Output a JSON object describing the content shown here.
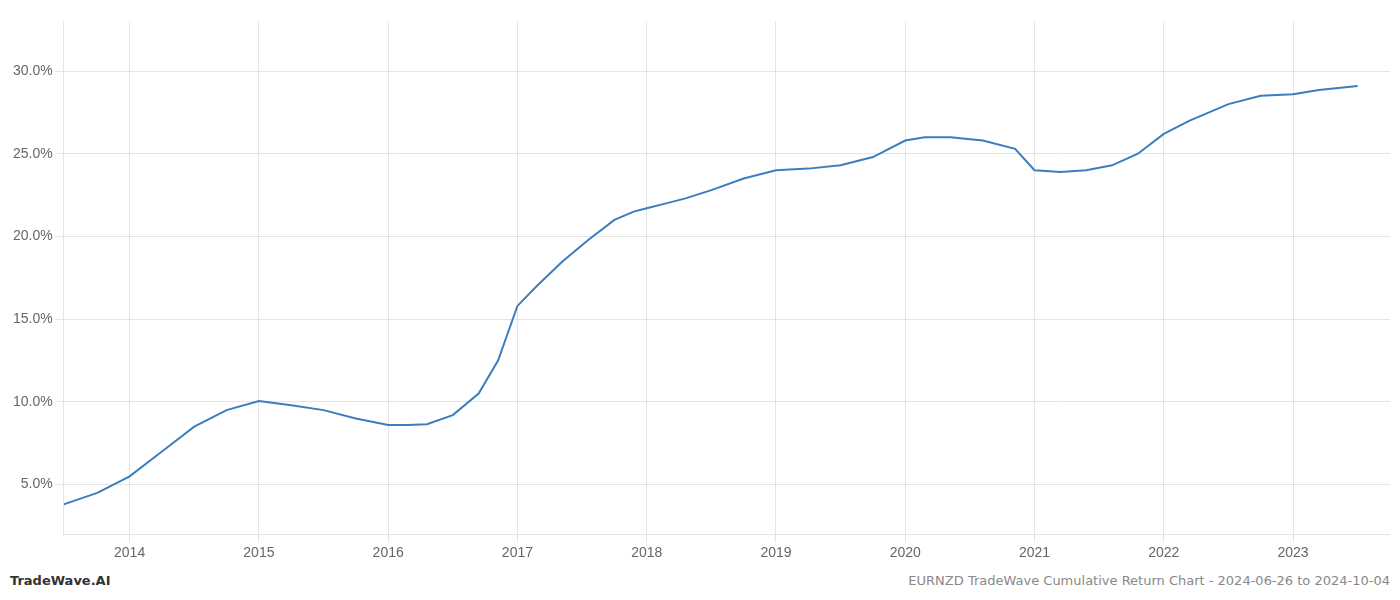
{
  "chart_data": {
    "type": "line",
    "x": [
      2013.49,
      2013.75,
      2014.0,
      2014.25,
      2014.5,
      2014.75,
      2015.0,
      2015.25,
      2015.5,
      2015.75,
      2016.0,
      2016.15,
      2016.3,
      2016.5,
      2016.7,
      2016.85,
      2017.0,
      2017.15,
      2017.35,
      2017.55,
      2017.75,
      2017.9,
      2018.0,
      2018.15,
      2018.3,
      2018.5,
      2018.75,
      2019.0,
      2019.25,
      2019.5,
      2019.75,
      2020.0,
      2020.15,
      2020.35,
      2020.6,
      2020.85,
      2021.0,
      2021.2,
      2021.4,
      2021.6,
      2021.8,
      2022.0,
      2022.2,
      2022.5,
      2022.75,
      2023.0,
      2023.2,
      2023.5
    ],
    "values": [
      3.8,
      4.5,
      5.5,
      7.0,
      8.5,
      9.5,
      10.05,
      9.8,
      9.5,
      9.0,
      8.6,
      8.6,
      8.65,
      9.2,
      10.5,
      12.5,
      15.8,
      17.0,
      18.5,
      19.8,
      21.0,
      21.5,
      21.7,
      22.0,
      22.3,
      22.8,
      23.5,
      24.0,
      24.1,
      24.3,
      24.8,
      25.8,
      26.0,
      26.0,
      25.8,
      25.3,
      24.0,
      23.9,
      24.0,
      24.3,
      25.0,
      26.2,
      27.0,
      28.0,
      28.5,
      28.6,
      28.85,
      29.1
    ],
    "color": "#3a7ebf",
    "xlim": [
      2013.49,
      2023.75
    ],
    "xticks": [
      2014,
      2015,
      2016,
      2017,
      2018,
      2019,
      2020,
      2021,
      2022,
      2023
    ],
    "ylim": [
      2.0,
      33.0
    ],
    "yticks": [
      {
        "value": 5.0,
        "label": "5.0%"
      },
      {
        "value": 10.0,
        "label": "10.0%"
      },
      {
        "value": 15.0,
        "label": "15.0%"
      },
      {
        "value": 20.0,
        "label": "20.0%"
      },
      {
        "value": 25.0,
        "label": "25.0%"
      },
      {
        "value": 30.0,
        "label": "30.0%"
      }
    ],
    "grid": true,
    "annotations": [
      "TradeWave.AI",
      "EURNZD TradeWave Cumulative Return Chart - 2024-06-26 to 2024-10-04"
    ]
  }
}
